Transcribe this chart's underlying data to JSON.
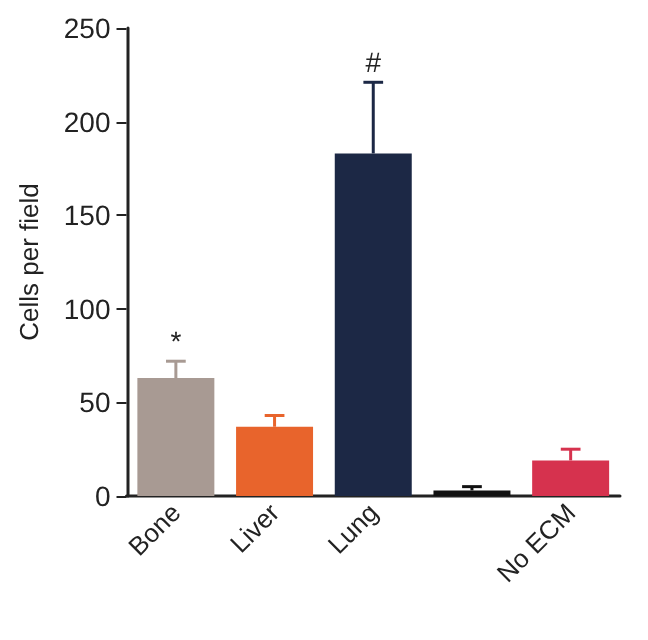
{
  "chart_data": {
    "type": "bar",
    "ylabel": "Cells per field",
    "categories": [
      "Bone",
      "Liver",
      "Lung",
      null,
      "No ECM"
    ],
    "values": [
      63,
      37,
      183,
      3,
      19
    ],
    "colors": [
      "#a89a93",
      "#e8642c",
      "#1c2845",
      "#111111",
      "#d6324e"
    ],
    "errors": [
      [
        63,
        72
      ],
      [
        37,
        43
      ],
      [
        183,
        221
      ],
      [
        3,
        5
      ],
      [
        19,
        25
      ]
    ],
    "ylim": [
      0,
      250
    ],
    "yticks": [
      0,
      50,
      100,
      150,
      200,
      250
    ],
    "grid": false,
    "annotations": [
      {
        "text": "*",
        "x": "Bone",
        "y": 72
      },
      {
        "text": "#",
        "x": "Lung",
        "y": 221
      }
    ]
  }
}
